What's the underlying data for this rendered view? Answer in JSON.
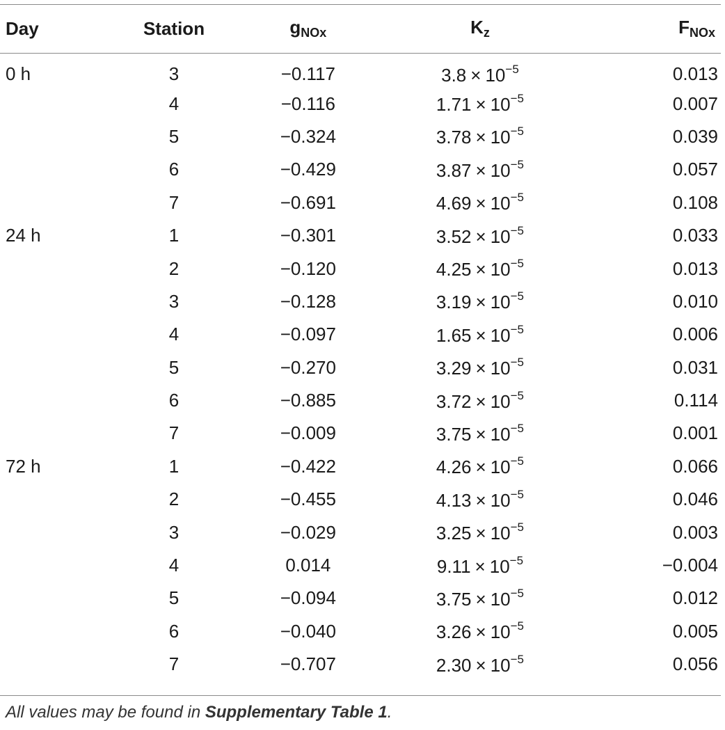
{
  "headers": {
    "day": "Day",
    "station": "Station",
    "g": {
      "main": "g",
      "sub": "NOx"
    },
    "k": {
      "main": "K",
      "sub": "z"
    },
    "f": {
      "main": "F",
      "sub": "NOx"
    }
  },
  "rows": [
    {
      "day": "0 h",
      "station": "3",
      "g": "−0.117",
      "k_coef": "3.8",
      "k_times": "×",
      "k_base": "10",
      "k_exp": "−5",
      "f": "0.013"
    },
    {
      "day": "",
      "station": "4",
      "g": "−0.116",
      "k_coef": "1.71",
      "k_times": "×",
      "k_base": "10",
      "k_exp": "−5",
      "f": "0.007"
    },
    {
      "day": "",
      "station": "5",
      "g": "−0.324",
      "k_coef": "3.78",
      "k_times": "×",
      "k_base": "10",
      "k_exp": "−5",
      "f": "0.039"
    },
    {
      "day": "",
      "station": "6",
      "g": "−0.429",
      "k_coef": "3.87",
      "k_times": "×",
      "k_base": "10",
      "k_exp": "−5",
      "f": "0.057"
    },
    {
      "day": "",
      "station": "7",
      "g": "−0.691",
      "k_coef": "4.69",
      "k_times": "×",
      "k_base": "10",
      "k_exp": "−5",
      "f": "0.108"
    },
    {
      "day": "24 h",
      "station": "1",
      "g": "−0.301",
      "k_coef": "3.52",
      "k_times": "×",
      "k_base": "10",
      "k_exp": "−5",
      "f": "0.033"
    },
    {
      "day": "",
      "station": "2",
      "g": "−0.120",
      "k_coef": "4.25",
      "k_times": "×",
      "k_base": "10",
      "k_exp": "−5",
      "f": "0.013"
    },
    {
      "day": "",
      "station": "3",
      "g": "−0.128",
      "k_coef": "3.19",
      "k_times": "×",
      "k_base": "10",
      "k_exp": "−5",
      "f": "0.010"
    },
    {
      "day": "",
      "station": "4",
      "g": "−0.097",
      "k_coef": "1.65",
      "k_times": "×",
      "k_base": "10",
      "k_exp": "−5",
      "f": "0.006"
    },
    {
      "day": "",
      "station": "5",
      "g": "−0.270",
      "k_coef": "3.29",
      "k_times": "×",
      "k_base": "10",
      "k_exp": "−5",
      "f": "0.031"
    },
    {
      "day": "",
      "station": "6",
      "g": "−0.885",
      "k_coef": "3.72",
      "k_times": "×",
      "k_base": "10",
      "k_exp": "−5",
      "f": "0.114"
    },
    {
      "day": "",
      "station": "7",
      "g": "−0.009",
      "k_coef": "3.75",
      "k_times": "×",
      "k_base": "10",
      "k_exp": "−5",
      "f": "0.001"
    },
    {
      "day": "72 h",
      "station": "1",
      "g": "−0.422",
      "k_coef": "4.26",
      "k_times": "×",
      "k_base": "10",
      "k_exp": "−5",
      "f": "0.066"
    },
    {
      "day": "",
      "station": "2",
      "g": "−0.455",
      "k_coef": "4.13",
      "k_times": "×",
      "k_base": "10",
      "k_exp": "−5",
      "f": "0.046"
    },
    {
      "day": "",
      "station": "3",
      "g": "−0.029",
      "k_coef": "3.25",
      "k_times": "×",
      "k_base": "10",
      "k_exp": "−5",
      "f": "0.003"
    },
    {
      "day": "",
      "station": "4",
      "g": "0.014",
      "k_coef": "9.11",
      "k_times": "×",
      "k_base": "10",
      "k_exp": "−5",
      "f": "−0.004"
    },
    {
      "day": "",
      "station": "5",
      "g": "−0.094",
      "k_coef": "3.75",
      "k_times": "×",
      "k_base": "10",
      "k_exp": "−5",
      "f": "0.012"
    },
    {
      "day": "",
      "station": "6",
      "g": "−0.040",
      "k_coef": "3.26",
      "k_times": "×",
      "k_base": "10",
      "k_exp": "−5",
      "f": "0.005"
    },
    {
      "day": "",
      "station": "7",
      "g": "−0.707",
      "k_coef": "2.30",
      "k_times": "×",
      "k_base": "10",
      "k_exp": "−5",
      "f": "0.056"
    }
  ],
  "footnote": {
    "prefix": "All values may be found in ",
    "bold": "Supplementary Table 1",
    "suffix": "."
  }
}
